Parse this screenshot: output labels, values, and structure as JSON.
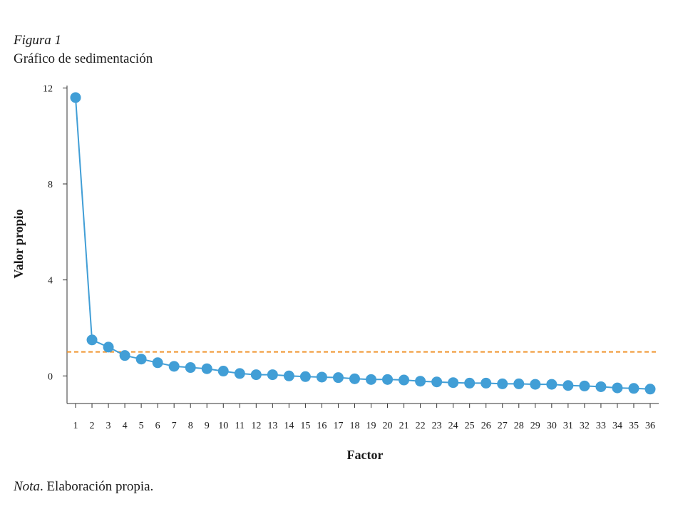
{
  "figure": {
    "label": "Figura 1",
    "title": "Gráfico de sedimentación",
    "note_label": "Nota",
    "note_text": ". Elaboración propia."
  },
  "chart_data": {
    "type": "line",
    "xlabel": "Factor",
    "ylabel": "Valor propio",
    "x": [
      1,
      2,
      3,
      4,
      5,
      6,
      7,
      8,
      9,
      10,
      11,
      12,
      13,
      14,
      15,
      16,
      17,
      18,
      19,
      20,
      21,
      22,
      23,
      24,
      25,
      26,
      27,
      28,
      29,
      30,
      31,
      32,
      33,
      34,
      35,
      36
    ],
    "values": [
      11.6,
      1.5,
      1.2,
      0.85,
      0.7,
      0.55,
      0.4,
      0.35,
      0.3,
      0.2,
      0.1,
      0.05,
      0.05,
      0.0,
      -0.03,
      -0.05,
      -0.07,
      -0.12,
      -0.15,
      -0.15,
      -0.17,
      -0.22,
      -0.25,
      -0.28,
      -0.3,
      -0.3,
      -0.33,
      -0.33,
      -0.35,
      -0.35,
      -0.4,
      -0.42,
      -0.45,
      -0.5,
      -0.52,
      -0.55
    ],
    "yticks": [
      0,
      4,
      8,
      12
    ],
    "ylim": [
      -1.15,
      12.1
    ],
    "reference_line": 1,
    "colors": {
      "line": "#419ed6",
      "marker": "#419ed6",
      "reference": "#f0952e",
      "axis": "#333333"
    },
    "grid": false
  }
}
